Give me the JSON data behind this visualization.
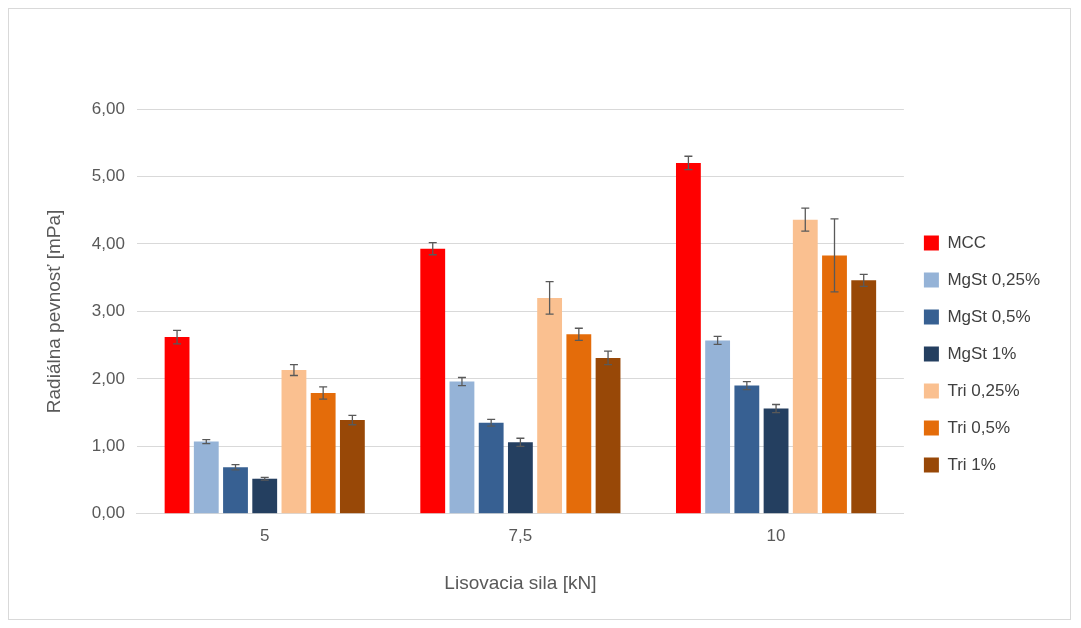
{
  "chart_data": {
    "type": "bar",
    "xlabel": "Lisovacia sila [kN]",
    "ylabel": "Radiálna pevnosť [mPa]",
    "categories": [
      "5",
      "7,5",
      "10"
    ],
    "series": [
      {
        "name": "MCC",
        "color": "#ff0000",
        "values": [
          2.62,
          3.93,
          5.2
        ],
        "errors": [
          0.1,
          0.09,
          0.1
        ]
      },
      {
        "name": "MgSt 0,25%",
        "color": "#95b3d7",
        "values": [
          1.07,
          1.96,
          2.57
        ],
        "errors": [
          0.03,
          0.06,
          0.06
        ]
      },
      {
        "name": "MgSt 0,5%",
        "color": "#376092",
        "values": [
          0.69,
          1.35,
          1.9
        ],
        "errors": [
          0.04,
          0.05,
          0.06
        ]
      },
      {
        "name": "MgSt 1%",
        "color": "#243f60",
        "values": [
          0.52,
          1.06,
          1.56
        ],
        "errors": [
          0.02,
          0.06,
          0.06
        ]
      },
      {
        "name": "Tri 0,25%",
        "color": "#fac090",
        "values": [
          2.13,
          3.2,
          4.36
        ],
        "errors": [
          0.08,
          0.24,
          0.17
        ]
      },
      {
        "name": "Tri 0,5%",
        "color": "#e46c0a",
        "values": [
          1.79,
          2.66,
          3.83
        ],
        "errors": [
          0.09,
          0.09,
          0.54
        ]
      },
      {
        "name": "Tri 1%",
        "color": "#984807",
        "values": [
          1.39,
          2.31,
          3.46
        ],
        "errors": [
          0.07,
          0.1,
          0.09
        ]
      }
    ],
    "ylim": [
      0,
      6
    ],
    "yticks": [
      {
        "value": 0,
        "label": "0,00"
      },
      {
        "value": 1,
        "label": "1,00"
      },
      {
        "value": 2,
        "label": "2,00"
      },
      {
        "value": 3,
        "label": "3,00"
      },
      {
        "value": 4,
        "label": "4,00"
      },
      {
        "value": 5,
        "label": "5,00"
      },
      {
        "value": 6,
        "label": "6,00"
      }
    ],
    "grid": "y",
    "legend": "right"
  }
}
